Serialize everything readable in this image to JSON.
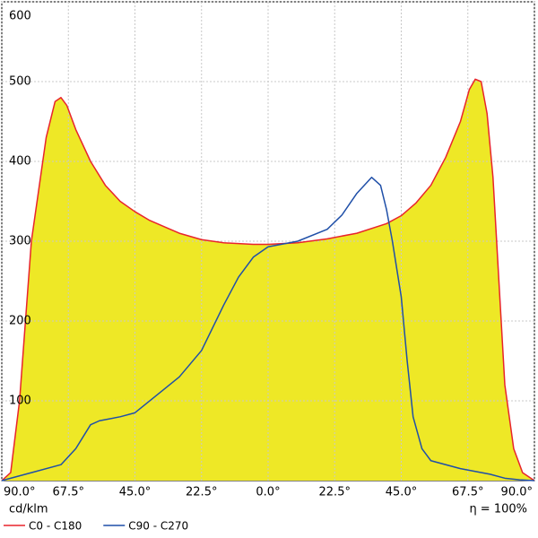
{
  "chart_data": {
    "type": "line",
    "y_unit_label": "cd/klm",
    "efficiency_label": "η = 100%",
    "xlim": [
      -90,
      90
    ],
    "ylim": [
      0,
      600
    ],
    "xticks": [
      {
        "value": -90,
        "label": "90.0°"
      },
      {
        "value": -67.5,
        "label": "67.5°"
      },
      {
        "value": -45,
        "label": "45.0°"
      },
      {
        "value": -22.5,
        "label": "22.5°"
      },
      {
        "value": 0,
        "label": "0.0°"
      },
      {
        "value": 22.5,
        "label": "22.5°"
      },
      {
        "value": 45,
        "label": "45.0°"
      },
      {
        "value": 67.5,
        "label": "67.5°"
      },
      {
        "value": 90,
        "label": "90.0°"
      }
    ],
    "yticks": [
      100,
      200,
      300,
      400,
      500,
      600
    ],
    "grid": true,
    "fill_color": "#eee826",
    "series": [
      {
        "name": "C0 - C180",
        "color": "#e8242c",
        "filled": true,
        "x": [
          -90,
          -87,
          -84,
          -80,
          -75,
          -72,
          -70,
          -68,
          -65,
          -60,
          -55,
          -50,
          -45,
          -40,
          -30,
          -22.5,
          -15,
          -5,
          0,
          10,
          20,
          30,
          40,
          45,
          50,
          55,
          60,
          65,
          68,
          70,
          72,
          74,
          76,
          78,
          80,
          83,
          86,
          90
        ],
        "values": [
          0,
          10,
          100,
          300,
          430,
          475,
          480,
          470,
          440,
          400,
          370,
          350,
          337,
          326,
          310,
          302,
          298,
          296,
          296,
          298,
          303,
          310,
          322,
          332,
          348,
          370,
          405,
          450,
          490,
          503,
          500,
          460,
          380,
          250,
          120,
          40,
          10,
          0
        ]
      },
      {
        "name": "C90 - C270",
        "color": "#1f4fa8",
        "filled": false,
        "x": [
          -90,
          -80,
          -70,
          -65,
          -60,
          -57,
          -50,
          -45,
          -35,
          -30,
          -22.5,
          -15,
          -10,
          -5,
          0,
          10,
          20,
          25,
          30,
          35,
          38,
          40,
          42,
          45,
          47,
          49,
          52,
          55,
          65,
          75,
          80,
          85,
          90
        ],
        "values": [
          0,
          10,
          20,
          40,
          70,
          75,
          80,
          85,
          115,
          130,
          163,
          220,
          255,
          280,
          293,
          300,
          315,
          333,
          360,
          380,
          370,
          340,
          300,
          230,
          150,
          80,
          40,
          25,
          15,
          8,
          3,
          1,
          0
        ]
      }
    ]
  }
}
